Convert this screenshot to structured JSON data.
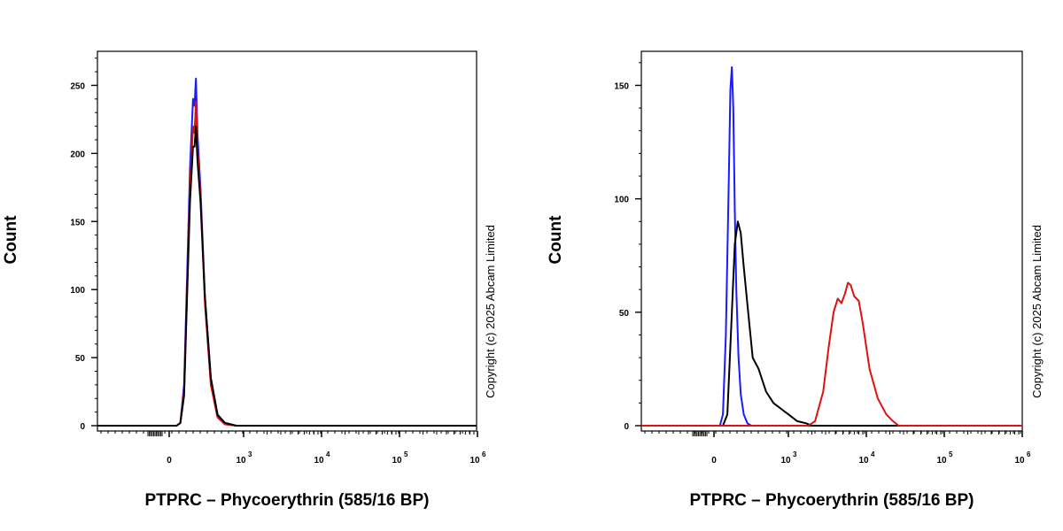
{
  "chart_data": [
    {
      "type": "line",
      "xlabel": "PTPRC – Phycoerythrin (585/16 BP)",
      "ylabel": "Count",
      "x_scale": "biexponential",
      "x_ticks": [
        {
          "value": 0,
          "label": "0",
          "sup": ""
        },
        {
          "value": 1000,
          "label": "10",
          "sup": "3"
        },
        {
          "value": 10000,
          "label": "10",
          "sup": "4"
        },
        {
          "value": 100000,
          "label": "10",
          "sup": "5"
        },
        {
          "value": 1000000,
          "label": "10",
          "sup": "6"
        }
      ],
      "y_ticks": [
        0,
        50,
        100,
        150,
        200,
        250
      ],
      "ylim": [
        0,
        275
      ],
      "copyright": "Copyright (c) 2025 Abcam Limited",
      "series": [
        {
          "color": "#1a1aff",
          "x": [
            100,
            150,
            200,
            240,
            280,
            320,
            340,
            360,
            380,
            420,
            480,
            560,
            650,
            750,
            900,
            1000
          ],
          "y": [
            0,
            2,
            30,
            110,
            190,
            240,
            235,
            255,
            215,
            175,
            95,
            35,
            8,
            2,
            0,
            0
          ]
        },
        {
          "color": "#e01010",
          "x": [
            100,
            150,
            200,
            240,
            280,
            320,
            340,
            360,
            380,
            420,
            480,
            560,
            650,
            750,
            900,
            1000
          ],
          "y": [
            0,
            2,
            25,
            100,
            175,
            220,
            215,
            238,
            205,
            170,
            90,
            30,
            6,
            1,
            0,
            0
          ]
        },
        {
          "color": "#000000",
          "x": [
            100,
            150,
            200,
            240,
            280,
            320,
            340,
            360,
            380,
            420,
            480,
            560,
            650,
            750,
            900,
            1000
          ],
          "y": [
            0,
            2,
            22,
            95,
            165,
            205,
            205,
            220,
            195,
            165,
            95,
            35,
            8,
            2,
            0,
            0
          ]
        }
      ]
    },
    {
      "type": "line",
      "xlabel": "PTPRC – Phycoerythrin (585/16 BP)",
      "ylabel": "Count",
      "x_scale": "biexponential",
      "x_ticks": [
        {
          "value": 0,
          "label": "0",
          "sup": ""
        },
        {
          "value": 1000,
          "label": "10",
          "sup": "3"
        },
        {
          "value": 10000,
          "label": "10",
          "sup": "4"
        },
        {
          "value": 100000,
          "label": "10",
          "sup": "5"
        },
        {
          "value": 1000000,
          "label": "10",
          "sup": "6"
        }
      ],
      "y_ticks": [
        0,
        50,
        100,
        150
      ],
      "ylim": [
        0,
        165
      ],
      "copyright": "Copyright (c) 2025 Abcam Limited",
      "series": [
        {
          "color": "#1a1aff",
          "x": [
            80,
            120,
            160,
            200,
            220,
            240,
            260,
            280,
            300,
            330,
            360,
            400,
            450,
            500,
            550
          ],
          "y": [
            0,
            5,
            40,
            110,
            148,
            158,
            140,
            95,
            60,
            30,
            14,
            5,
            1,
            0,
            0
          ]
        },
        {
          "color": "#000000",
          "x": [
            120,
            180,
            240,
            280,
            320,
            360,
            400,
            460,
            520,
            600,
            700,
            800,
            1000,
            1300,
            1700,
            2000,
            2500
          ],
          "y": [
            0,
            5,
            50,
            80,
            90,
            85,
            70,
            50,
            30,
            25,
            15,
            10,
            5,
            2,
            1,
            0,
            0
          ]
        },
        {
          "color": "#e01010",
          "x": [
            1800,
            2200,
            2800,
            3300,
            3800,
            4300,
            4800,
            5300,
            5800,
            6300,
            7000,
            8000,
            9000,
            11000,
            14000,
            18000,
            22000,
            26000,
            30000
          ],
          "y": [
            0,
            2,
            15,
            35,
            50,
            56,
            54,
            58,
            63,
            62,
            57,
            55,
            45,
            25,
            12,
            5,
            2,
            0,
            0
          ]
        }
      ]
    }
  ]
}
